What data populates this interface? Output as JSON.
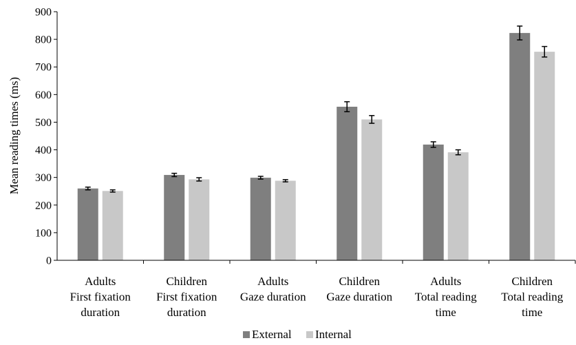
{
  "chart_data": {
    "type": "bar",
    "title": "",
    "xlabel": "",
    "ylabel": "Mean reading times (ms)",
    "ylim": [
      0,
      900
    ],
    "yticks": [
      0,
      100,
      200,
      300,
      400,
      500,
      600,
      700,
      800,
      900
    ],
    "grid": false,
    "legend_position": "bottom",
    "categories": [
      [
        "Adults",
        "First fixation",
        "duration"
      ],
      [
        "Children",
        "First fixation",
        "duration"
      ],
      [
        "Adults",
        "Gaze duration"
      ],
      [
        "Children",
        "Gaze duration"
      ],
      [
        "Adults",
        "Total reading",
        "time"
      ],
      [
        "Children",
        "Total reading",
        "time"
      ]
    ],
    "series": [
      {
        "name": "External",
        "color": "#7f7f7f",
        "values": [
          260,
          309,
          299,
          556,
          419,
          823
        ],
        "errors": [
          5,
          6,
          5,
          18,
          10,
          25
        ]
      },
      {
        "name": "Internal",
        "color": "#c8c8c8",
        "values": [
          251,
          293,
          288,
          510,
          391,
          755
        ],
        "errors": [
          4,
          6,
          4,
          14,
          9,
          19
        ]
      }
    ]
  }
}
